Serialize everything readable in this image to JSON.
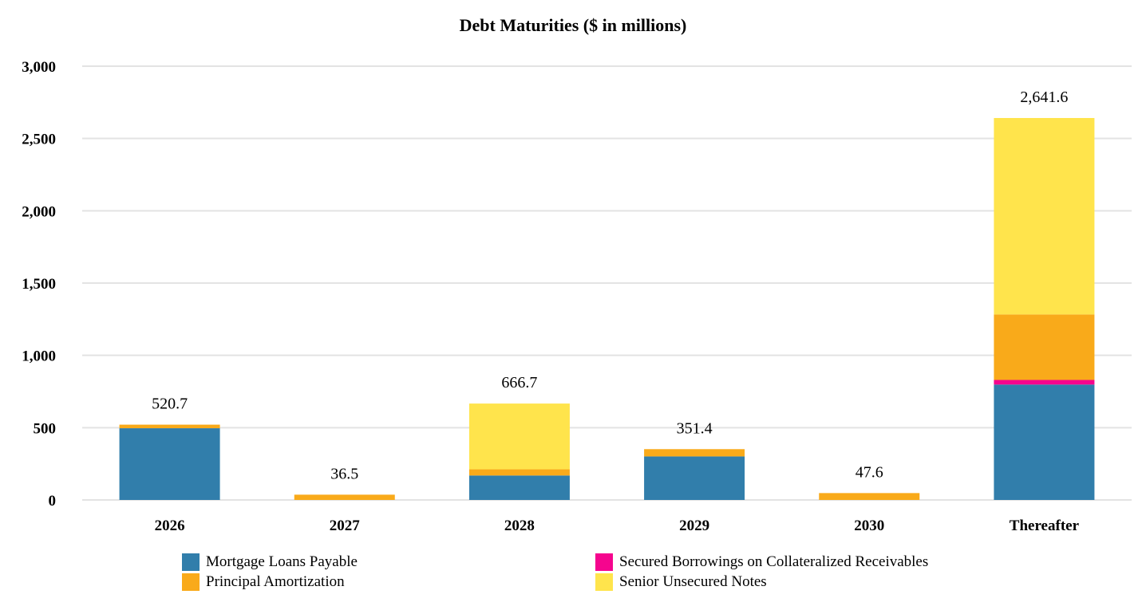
{
  "chart_data": {
    "type": "bar",
    "stacked": true,
    "title": "Debt Maturities ($ in millions)",
    "xlabel": "",
    "ylabel": "",
    "ylim": [
      0,
      3000
    ],
    "yticks": [
      0,
      500,
      1000,
      1500,
      2000,
      2500,
      3000
    ],
    "ytick_labels": [
      "0",
      "500",
      "1,000",
      "1,500",
      "2,000",
      "2,500",
      "3,000"
    ],
    "grid": true,
    "legend_position": "bottom",
    "categories": [
      "2026",
      "2027",
      "2028",
      "2029",
      "2030",
      "Thereafter"
    ],
    "totals": [
      "520.7",
      "36.5",
      "666.7",
      "351.4",
      "47.6",
      "2,641.6"
    ],
    "total_values": [
      520.7,
      36.5,
      666.7,
      351.4,
      47.6,
      2641.6
    ],
    "series": [
      {
        "name": "Mortgage Loans Payable",
        "color": "#317EAB",
        "values": [
          496.0,
          0,
          169.0,
          301.0,
          0,
          798.0
        ]
      },
      {
        "name": "Secured Borrowings on Collateralized Receivables",
        "color": "#F5058E",
        "values": [
          0,
          0,
          0,
          0,
          0,
          32.0
        ]
      },
      {
        "name": "Principal Amortization",
        "color": "#F9AA1A",
        "values": [
          24.7,
          36.5,
          43.0,
          50.4,
          47.6,
          453.0
        ]
      },
      {
        "name": "Senior Unsecured Notes",
        "color": "#FFE44C",
        "values": [
          0,
          0,
          454.7,
          0,
          0,
          1358.6
        ]
      }
    ]
  }
}
